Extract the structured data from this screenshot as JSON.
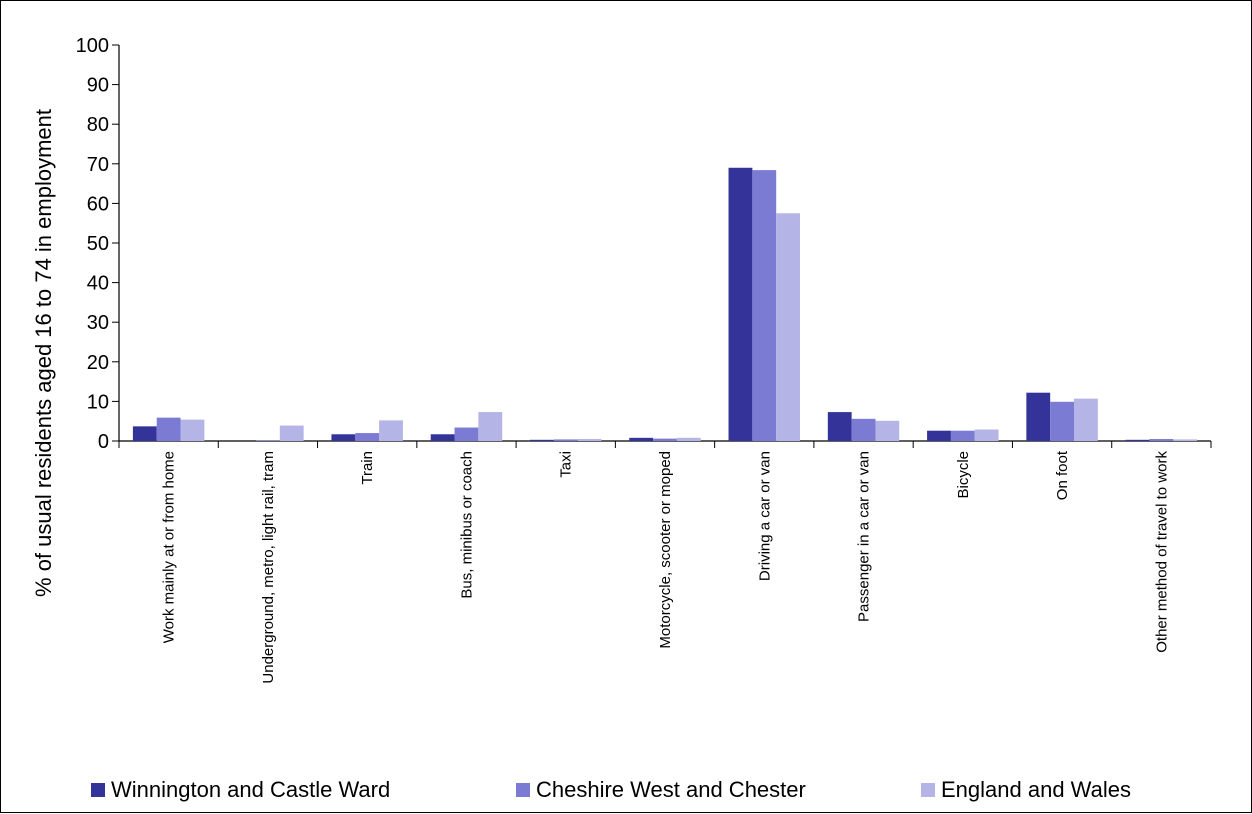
{
  "chart_data": {
    "type": "bar",
    "title": "",
    "xlabel": "",
    "ylabel": "% of usual residents aged 16 to 74 in employment",
    "ylim": [
      0,
      100
    ],
    "yticks": [
      0,
      10,
      20,
      30,
      40,
      50,
      60,
      70,
      80,
      90,
      100
    ],
    "grid": false,
    "legend_position": "bottom",
    "categories": [
      "Work mainly at or from home",
      "Underground, metro, light rail, tram",
      "Train",
      "Bus, minibus or coach",
      "Taxi",
      "Motorcycle, scooter or moped",
      "Driving a car or van",
      "Passenger in a car or van",
      "Bicycle",
      "On foot",
      "Other method of travel to work"
    ],
    "series": [
      {
        "name": "Winnington and Castle Ward",
        "color": "#333399",
        "values": [
          3.7,
          0.0,
          1.7,
          1.7,
          0.3,
          0.8,
          69.0,
          7.3,
          2.6,
          12.2,
          0.3
        ]
      },
      {
        "name": "Cheshire West and Chester",
        "color": "#7b7bd4",
        "values": [
          5.9,
          0.1,
          2.0,
          3.4,
          0.4,
          0.6,
          68.4,
          5.6,
          2.6,
          9.9,
          0.5
        ]
      },
      {
        "name": "England and Wales",
        "color": "#b4b4e6",
        "values": [
          5.4,
          3.9,
          5.2,
          7.3,
          0.5,
          0.8,
          57.5,
          5.1,
          2.9,
          10.7,
          0.4
        ]
      }
    ]
  }
}
